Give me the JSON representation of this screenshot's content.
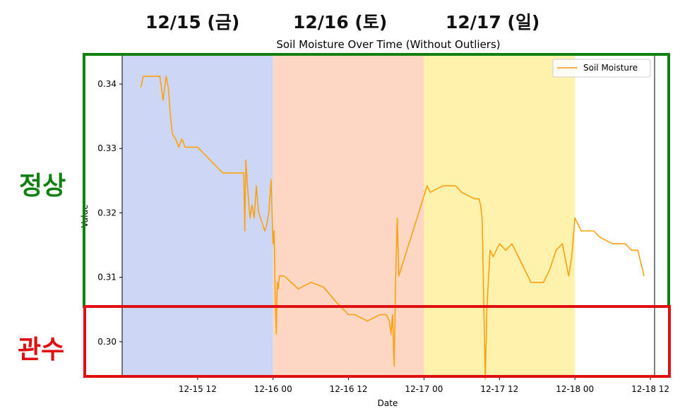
{
  "annotations": {
    "days": [
      "12/15 (금)",
      "12/16 (토)",
      "12/17 (일)"
    ],
    "normal_label": "정상",
    "irrigation_label": "관수",
    "normal_color": "#118011",
    "irrigation_color": "#e01010"
  },
  "chart_data": {
    "type": "line",
    "title": "Soil Moisture Over Time (Without Outliers)",
    "xlabel": "Date",
    "ylabel": "Value",
    "xlim": [
      "2023-12-15 00:00",
      "2023-12-18 12:40"
    ],
    "ylim": [
      0.2945,
      0.3445
    ],
    "x_ticks": [
      {
        "value": "2023-12-15 12:00",
        "label": "12-15 12"
      },
      {
        "value": "2023-12-16 00:00",
        "label": "12-16 00"
      },
      {
        "value": "2023-12-16 12:00",
        "label": "12-16 12"
      },
      {
        "value": "2023-12-17 00:00",
        "label": "12-17 00"
      },
      {
        "value": "2023-12-17 12:00",
        "label": "12-17 12"
      },
      {
        "value": "2023-12-18 00:00",
        "label": "12-18 00"
      },
      {
        "value": "2023-12-18 12:00",
        "label": "12-18 12"
      }
    ],
    "y_ticks": [
      {
        "value": 0.3,
        "label": "0.30"
      },
      {
        "value": 0.31,
        "label": "0.31"
      },
      {
        "value": 0.32,
        "label": "0.32"
      },
      {
        "value": 0.33,
        "label": "0.33"
      },
      {
        "value": 0.34,
        "label": "0.34"
      }
    ],
    "grid": false,
    "legend": {
      "position": "top-right",
      "entries": [
        "Soil Moisture"
      ]
    },
    "day_bands": [
      {
        "start": "2023-12-15 00:00",
        "end": "2023-12-16 00:00",
        "color": "#cdd7f3"
      },
      {
        "start": "2023-12-16 00:00",
        "end": "2023-12-17 00:00",
        "color": "#fed8c3"
      },
      {
        "start": "2023-12-17 00:00",
        "end": "2023-12-18 00:00",
        "color": "#fef2ad"
      }
    ],
    "series": [
      {
        "name": "Soil Moisture",
        "color": "#ffa010",
        "x": [
          "2023-12-15 03:00",
          "2023-12-15 03:20",
          "2023-12-15 06:00",
          "2023-12-15 06:30",
          "2023-12-15 07:00",
          "2023-12-15 07:20",
          "2023-12-15 07:40",
          "2023-12-15 08:00",
          "2023-12-15 08:30",
          "2023-12-15 09:00",
          "2023-12-15 09:30",
          "2023-12-15 10:00",
          "2023-12-15 10:30",
          "2023-12-15 11:00",
          "2023-12-15 12:00",
          "2023-12-15 13:00",
          "2023-12-15 14:00",
          "2023-12-15 15:00",
          "2023-12-15 16:00",
          "2023-12-15 19:20",
          "2023-12-15 19:30",
          "2023-12-15 19:40",
          "2023-12-15 20:00",
          "2023-12-15 20:20",
          "2023-12-15 20:40",
          "2023-12-15 21:00",
          "2023-12-15 21:20",
          "2023-12-15 21:40",
          "2023-12-15 22:00",
          "2023-12-15 22:20",
          "2023-12-15 22:40",
          "2023-12-15 23:00",
          "2023-12-15 23:20",
          "2023-12-15 23:40",
          "2023-12-16 00:00",
          "2023-12-16 00:10",
          "2023-12-16 00:20",
          "2023-12-16 00:30",
          "2023-12-16 00:40",
          "2023-12-16 00:50",
          "2023-12-16 01:00",
          "2023-12-16 01:20",
          "2023-12-16 01:40",
          "2023-12-16 02:00",
          "2023-12-16 04:00",
          "2023-12-16 06:00",
          "2023-12-16 08:00",
          "2023-12-16 10:00",
          "2023-12-16 12:00",
          "2023-12-16 13:00",
          "2023-12-16 15:00",
          "2023-12-16 17:00",
          "2023-12-16 18:00",
          "2023-12-16 18:30",
          "2023-12-16 18:45",
          "2023-12-16 19:00",
          "2023-12-16 19:15",
          "2023-12-16 19:30",
          "2023-12-16 19:45",
          "2023-12-16 20:00",
          "2023-12-17 00:30",
          "2023-12-17 01:00",
          "2023-12-17 03:00",
          "2023-12-17 05:00",
          "2023-12-17 06:00",
          "2023-12-17 08:00",
          "2023-12-17 08:30",
          "2023-12-17 08:45",
          "2023-12-17 09:00",
          "2023-12-17 09:15",
          "2023-12-17 09:30",
          "2023-12-17 09:45",
          "2023-12-17 10:00",
          "2023-12-17 10:30",
          "2023-12-17 11:00",
          "2023-12-17 12:00",
          "2023-12-17 13:00",
          "2023-12-17 14:00",
          "2023-12-17 15:00",
          "2023-12-17 16:00",
          "2023-12-17 17:00",
          "2023-12-17 18:00",
          "2023-12-17 19:00",
          "2023-12-17 20:00",
          "2023-12-17 21:00",
          "2023-12-17 22:00",
          "2023-12-17 23:00",
          "2023-12-17 23:30",
          "2023-12-18 00:00",
          "2023-12-18 01:00",
          "2023-12-18 03:00",
          "2023-12-18 04:00",
          "2023-12-18 06:00",
          "2023-12-18 08:00",
          "2023-12-18 09:00",
          "2023-12-18 10:00",
          "2023-12-18 10:30",
          "2023-12-18 11:00"
        ],
        "values": [
          0.3395,
          0.3412,
          0.3412,
          0.3375,
          0.3412,
          0.3395,
          0.3352,
          0.3322,
          0.3315,
          0.3302,
          0.3315,
          0.3302,
          0.3302,
          0.3302,
          0.3302,
          0.3292,
          0.3282,
          0.3272,
          0.3262,
          0.3262,
          0.3172,
          0.3282,
          0.3232,
          0.3192,
          0.3212,
          0.3192,
          0.3242,
          0.3202,
          0.3192,
          0.3182,
          0.3172,
          0.3182,
          0.3202,
          0.3252,
          0.3152,
          0.3172,
          0.3072,
          0.3012,
          0.3092,
          0.3082,
          0.3102,
          0.3102,
          0.3102,
          0.31,
          0.3082,
          0.3092,
          0.3085,
          0.3062,
          0.3042,
          0.3042,
          0.3032,
          0.3042,
          0.3042,
          0.3032,
          0.3012,
          0.3042,
          0.2962,
          0.3102,
          0.3192,
          0.3102,
          0.3242,
          0.3232,
          0.3242,
          0.3242,
          0.3232,
          0.3222,
          0.3222,
          0.3222,
          0.3212,
          0.3192,
          0.3062,
          0.2942,
          0.3052,
          0.3142,
          0.3132,
          0.3152,
          0.3142,
          0.3152,
          0.3132,
          0.3112,
          0.3092,
          0.3092,
          0.3092,
          0.3112,
          0.3142,
          0.3152,
          0.3102,
          0.3132,
          0.3192,
          0.3172,
          0.3172,
          0.3162,
          0.3152,
          0.3152,
          0.3142,
          0.3142,
          0.3122,
          0.3102
        ]
      }
    ]
  }
}
